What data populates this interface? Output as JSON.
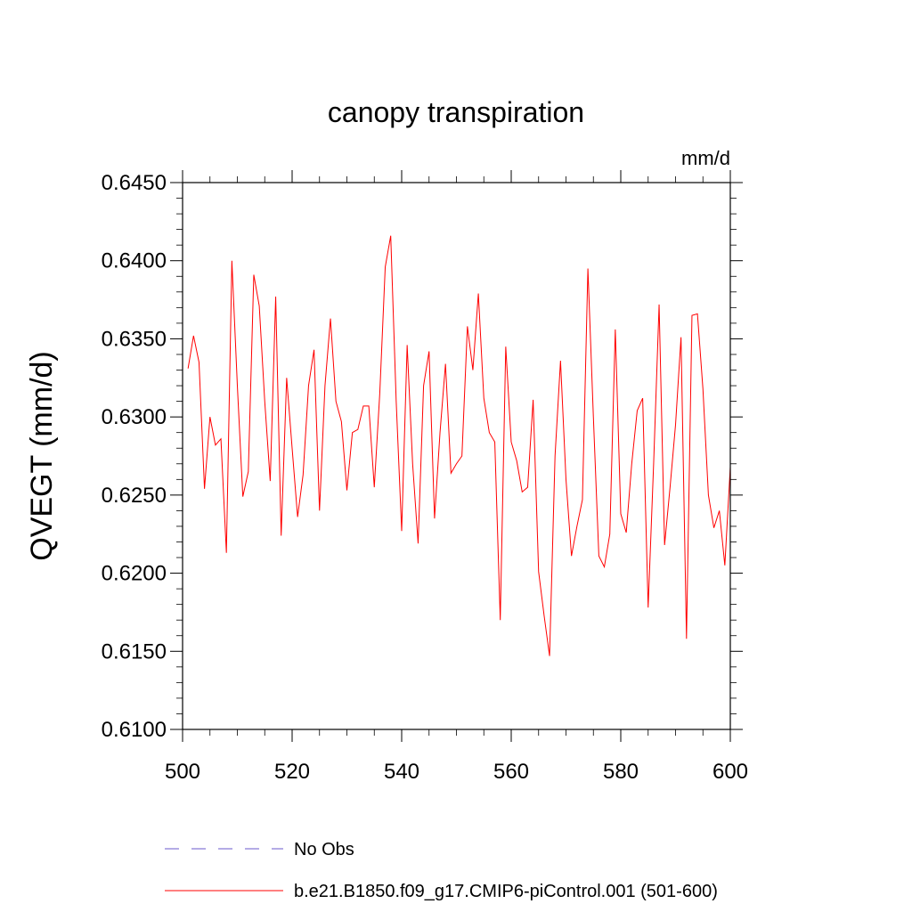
{
  "chart_data": {
    "type": "line",
    "title": "canopy transpiration",
    "units": "mm/d",
    "ylabel": "QVEGT  (mm/d)",
    "xlabel": "",
    "xlim": [
      500,
      600
    ],
    "ylim": [
      0.61,
      0.645
    ],
    "x_ticks": [
      500,
      520,
      540,
      560,
      580,
      600
    ],
    "x_tick_labels": [
      "500",
      "520",
      "540",
      "560",
      "580",
      "600"
    ],
    "y_ticks": [
      0.61,
      0.615,
      0.62,
      0.625,
      0.63,
      0.635,
      0.64,
      0.645
    ],
    "y_tick_labels": [
      "0.6100",
      "0.6150",
      "0.6200",
      "0.6250",
      "0.6300",
      "0.6350",
      "0.6400",
      "0.6450"
    ],
    "grid": false,
    "legend_position": "bottom",
    "series": [
      {
        "name": "No Obs",
        "color": "#6a5acd",
        "dash": true,
        "values": []
      },
      {
        "name": "b.e21.B1850.f09_g17.CMIP6-piControl.001 (501-600)",
        "color": "#ff0000",
        "dash": false,
        "x": [
          501,
          502,
          503,
          504,
          505,
          506,
          507,
          508,
          509,
          510,
          511,
          512,
          513,
          514,
          515,
          516,
          517,
          518,
          519,
          520,
          521,
          522,
          523,
          524,
          525,
          526,
          527,
          528,
          529,
          530,
          531,
          532,
          533,
          534,
          535,
          536,
          537,
          538,
          539,
          540,
          541,
          542,
          543,
          544,
          545,
          546,
          547,
          548,
          549,
          550,
          551,
          552,
          553,
          554,
          555,
          556,
          557,
          558,
          559,
          560,
          561,
          562,
          563,
          564,
          565,
          566,
          567,
          568,
          569,
          570,
          571,
          572,
          573,
          574,
          575,
          576,
          577,
          578,
          579,
          580,
          581,
          582,
          583,
          584,
          585,
          586,
          587,
          588,
          589,
          590,
          591,
          592,
          593,
          594,
          595,
          596,
          597,
          598,
          599,
          600
        ],
        "values": [
          0.6331,
          0.6352,
          0.6335,
          0.6254,
          0.63,
          0.6282,
          0.6286,
          0.6213,
          0.64,
          0.632,
          0.6249,
          0.6265,
          0.6391,
          0.6371,
          0.631,
          0.6259,
          0.6377,
          0.6224,
          0.6325,
          0.628,
          0.6236,
          0.6263,
          0.632,
          0.6343,
          0.624,
          0.632,
          0.6363,
          0.631,
          0.6297,
          0.6253,
          0.629,
          0.6292,
          0.6307,
          0.6307,
          0.6255,
          0.6315,
          0.6396,
          0.6416,
          0.631,
          0.6227,
          0.6346,
          0.627,
          0.6219,
          0.632,
          0.6342,
          0.6235,
          0.629,
          0.6334,
          0.6264,
          0.627,
          0.6275,
          0.6358,
          0.633,
          0.6379,
          0.6312,
          0.629,
          0.6284,
          0.617,
          0.6345,
          0.6284,
          0.6272,
          0.6252,
          0.6255,
          0.6311,
          0.6201,
          0.6173,
          0.6147,
          0.6275,
          0.6336,
          0.626,
          0.6211,
          0.623,
          0.6247,
          0.6395,
          0.63,
          0.6211,
          0.6204,
          0.6225,
          0.6356,
          0.6238,
          0.6226,
          0.627,
          0.6304,
          0.6312,
          0.6178,
          0.627,
          0.6372,
          0.6218,
          0.6255,
          0.6295,
          0.6351,
          0.6158,
          0.6365,
          0.6366,
          0.6318,
          0.625,
          0.6229,
          0.624,
          0.6205,
          0.6268
        ]
      }
    ]
  }
}
